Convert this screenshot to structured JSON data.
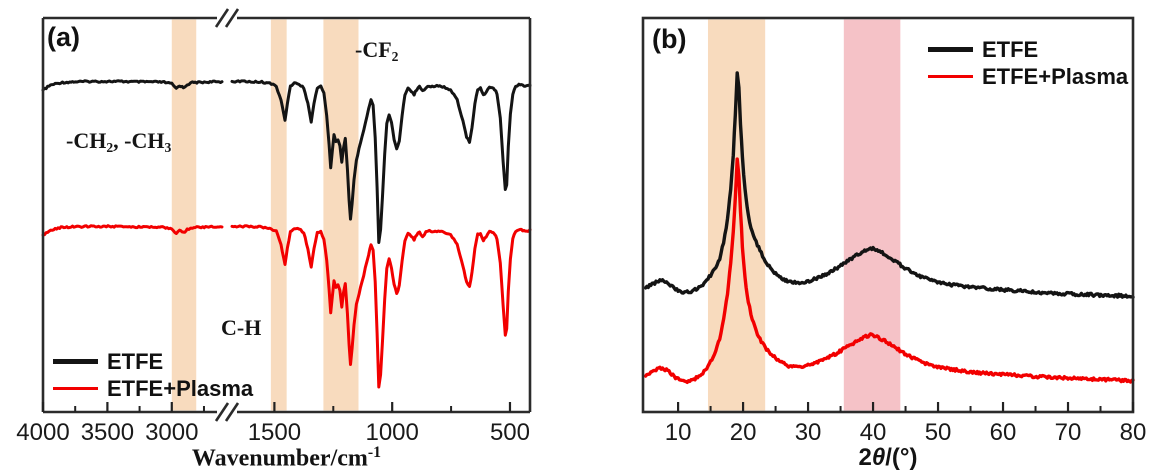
{
  "figure": {
    "background": "#ffffff"
  },
  "chart_data": [
    {
      "type": "line",
      "panel_label": "(a)",
      "description": "FTIR transmittance spectra (arbitrary units, curves vertically offset), broken wavenumber axis",
      "xlabel_text": "Wavenumber/cm-1",
      "xlabel_rich": [
        {
          "t": "Wavenumber/cm"
        },
        {
          "t": "-1",
          "sup": true
        }
      ],
      "x_axis": {
        "direction": "decreasing",
        "broken": true,
        "left_segment_range": [
          4000,
          2610
        ],
        "right_segment_range": [
          1680,
          415
        ],
        "major_ticks": [
          4000,
          3500,
          3000,
          1500,
          1000,
          500
        ],
        "major_tick_labels": [
          "4000",
          "3500",
          "3000",
          "1500",
          "1000",
          "500"
        ],
        "minor_ticks": [
          3750,
          3250,
          2750,
          1250,
          750
        ]
      },
      "y_axis": {
        "label": "",
        "ticks": "none",
        "units": "a.u."
      },
      "highlight_bands": [
        {
          "from": 3000,
          "to": 2810,
          "color": "#F8DBBE"
        },
        {
          "from": 1515,
          "to": 1448,
          "color": "#F8DBBE"
        },
        {
          "from": 1292,
          "to": 1143,
          "color": "#F8DBBE"
        }
      ],
      "annotations": [
        {
          "name": "ch-groups",
          "text": "-CH2, -CH3",
          "rich": [
            {
              "t": "-CH"
            },
            {
              "t": "2",
              "sub": true
            },
            {
              "t": ", -CH"
            },
            {
              "t": "3",
              "sub": true
            }
          ]
        },
        {
          "name": "cf2-group",
          "text": "-CF2",
          "rich": [
            {
              "t": "-CF"
            },
            {
              "t": "2",
              "sub": true
            }
          ]
        },
        {
          "name": "c-h",
          "text": "C-H",
          "rich": [
            {
              "t": "C-H"
            }
          ]
        }
      ],
      "legend": {
        "position": "bottom-left",
        "items": [
          {
            "label": "ETFE",
            "color": "#141414"
          },
          {
            "label": "ETFE+Plasma",
            "color": "#F20000"
          }
        ]
      },
      "series": [
        {
          "name": "ETFE",
          "color": "#141414",
          "baseline": 0.838,
          "width": 3
        },
        {
          "name": "ETFE+Plasma",
          "color": "#F20000",
          "baseline": 0.47,
          "width": 3
        }
      ],
      "profile_points": [
        [
          4000,
          -0.021
        ],
        [
          3940,
          -0.008
        ],
        [
          3860,
          -0.002
        ],
        [
          3760,
          0
        ],
        [
          3640,
          0.001
        ],
        [
          3520,
          0.001
        ],
        [
          3400,
          0.001
        ],
        [
          3280,
          0
        ],
        [
          3160,
          0
        ],
        [
          3060,
          -0.001
        ],
        [
          3000,
          -0.005
        ],
        [
          2965,
          -0.017
        ],
        [
          2940,
          -0.009
        ],
        [
          2910,
          -0.015
        ],
        [
          2880,
          -0.007
        ],
        [
          2840,
          -0.002
        ],
        [
          2760,
          -0.001
        ],
        [
          2680,
          0
        ],
        [
          2610,
          0
        ],
        [
          1680,
          0.001
        ],
        [
          1620,
          0.001
        ],
        [
          1560,
          0
        ],
        [
          1520,
          -0.003
        ],
        [
          1492,
          -0.012
        ],
        [
          1472,
          -0.045
        ],
        [
          1455,
          -0.097
        ],
        [
          1445,
          -0.055
        ],
        [
          1432,
          -0.012
        ],
        [
          1415,
          -0.004
        ],
        [
          1395,
          -0.006
        ],
        [
          1375,
          -0.015
        ],
        [
          1358,
          -0.055
        ],
        [
          1344,
          -0.102
        ],
        [
          1332,
          -0.055
        ],
        [
          1318,
          -0.016
        ],
        [
          1303,
          -0.012
        ],
        [
          1290,
          -0.03
        ],
        [
          1278,
          -0.085
        ],
        [
          1268,
          -0.16
        ],
        [
          1261,
          -0.218
        ],
        [
          1254,
          -0.175
        ],
        [
          1247,
          -0.135
        ],
        [
          1239,
          -0.152
        ],
        [
          1230,
          -0.147
        ],
        [
          1222,
          -0.16
        ],
        [
          1214,
          -0.205
        ],
        [
          1207,
          -0.17
        ],
        [
          1199,
          -0.145
        ],
        [
          1190,
          -0.22
        ],
        [
          1183,
          -0.3
        ],
        [
          1177,
          -0.35
        ],
        [
          1170,
          -0.31
        ],
        [
          1162,
          -0.25
        ],
        [
          1152,
          -0.198
        ],
        [
          1141,
          -0.17
        ],
        [
          1128,
          -0.14
        ],
        [
          1114,
          -0.105
        ],
        [
          1100,
          -0.07
        ],
        [
          1090,
          -0.045
        ],
        [
          1081,
          -0.06
        ],
        [
          1072,
          -0.14
        ],
        [
          1064,
          -0.27
        ],
        [
          1057,
          -0.407
        ],
        [
          1049,
          -0.375
        ],
        [
          1041,
          -0.29
        ],
        [
          1032,
          -0.185
        ],
        [
          1023,
          -0.105
        ],
        [
          1013,
          -0.083
        ],
        [
          1003,
          -0.105
        ],
        [
          992,
          -0.145
        ],
        [
          981,
          -0.17
        ],
        [
          970,
          -0.15
        ],
        [
          958,
          -0.085
        ],
        [
          946,
          -0.035
        ],
        [
          933,
          -0.015
        ],
        [
          919,
          -0.025
        ],
        [
          907,
          -0.032
        ],
        [
          896,
          -0.02
        ],
        [
          884,
          -0.013
        ],
        [
          871,
          -0.024
        ],
        [
          857,
          -0.014
        ],
        [
          842,
          -0.011
        ],
        [
          824,
          -0.013
        ],
        [
          804,
          -0.01
        ],
        [
          780,
          -0.013
        ],
        [
          752,
          -0.02
        ],
        [
          724,
          -0.045
        ],
        [
          700,
          -0.1
        ],
        [
          684,
          -0.14
        ],
        [
          672,
          -0.153
        ],
        [
          661,
          -0.115
        ],
        [
          649,
          -0.055
        ],
        [
          637,
          -0.02
        ],
        [
          625,
          -0.016
        ],
        [
          613,
          -0.034
        ],
        [
          601,
          -0.026
        ],
        [
          587,
          -0.013
        ],
        [
          571,
          -0.014
        ],
        [
          555,
          -0.03
        ],
        [
          541,
          -0.09
        ],
        [
          529,
          -0.2
        ],
        [
          520,
          -0.275
        ],
        [
          514,
          -0.26
        ],
        [
          507,
          -0.165
        ],
        [
          498,
          -0.08
        ],
        [
          488,
          -0.03
        ],
        [
          476,
          -0.012
        ],
        [
          462,
          -0.007
        ],
        [
          446,
          -0.009
        ],
        [
          430,
          -0.011
        ],
        [
          415,
          -0.009
        ]
      ]
    },
    {
      "type": "line",
      "panel_label": "(b)",
      "description": "XRD patterns, intensity in arbitrary units (curves vertically offset)",
      "xlabel_text": "2θ/(°)",
      "xlabel_rich": [
        {
          "t": "2"
        },
        {
          "t": "θ",
          "italic": true
        },
        {
          "t": "/(°)"
        }
      ],
      "x_axis": {
        "min": 4.6,
        "max": 80,
        "major_ticks": [
          10,
          20,
          30,
          40,
          50,
          60,
          70,
          80
        ],
        "major_tick_labels": [
          "10",
          "20",
          "30",
          "40",
          "50",
          "60",
          "70",
          "80"
        ],
        "minor_ticks": [
          15,
          25,
          35,
          45,
          55,
          65,
          75
        ]
      },
      "y_axis": {
        "label": "",
        "ticks": "none",
        "units": "a.u."
      },
      "highlight_bands": [
        {
          "from": 14.6,
          "to": 23.4,
          "color": "#F8DBBE"
        },
        {
          "from": 35.5,
          "to": 44.2,
          "color": "#F5C2C7"
        }
      ],
      "peaks": [
        {
          "two_theta": 19.1,
          "note": "sharp main peak, both curves"
        },
        {
          "two_theta": 39.5,
          "note": "broad hump, both curves"
        }
      ],
      "legend": {
        "position": "top-right",
        "items": [
          {
            "label": "ETFE",
            "color": "#141414"
          },
          {
            "label": "ETFE+Plasma",
            "color": "#F20000"
          }
        ]
      },
      "series": [
        {
          "name": "ETFE",
          "color": "#141414",
          "width": 3.4,
          "points": [
            [
              5,
              0.315
            ],
            [
              5.8,
              0.322
            ],
            [
              6.8,
              0.331
            ],
            [
              7.6,
              0.334
            ],
            [
              8.6,
              0.325
            ],
            [
              9.6,
              0.312
            ],
            [
              10.6,
              0.305
            ],
            [
              11.6,
              0.304
            ],
            [
              12.6,
              0.31
            ],
            [
              13.6,
              0.32
            ],
            [
              14.6,
              0.338
            ],
            [
              15.6,
              0.362
            ],
            [
              16.4,
              0.39
            ],
            [
              17,
              0.43
            ],
            [
              17.6,
              0.49
            ],
            [
              18.1,
              0.565
            ],
            [
              18.5,
              0.655
            ],
            [
              18.8,
              0.755
            ],
            [
              19.1,
              0.862
            ],
            [
              19.35,
              0.825
            ],
            [
              19.6,
              0.73
            ],
            [
              19.9,
              0.645
            ],
            [
              20.3,
              0.565
            ],
            [
              20.8,
              0.5
            ],
            [
              21.4,
              0.455
            ],
            [
              22,
              0.432
            ],
            [
              22.6,
              0.41
            ],
            [
              23.4,
              0.383
            ],
            [
              24.4,
              0.36
            ],
            [
              25.6,
              0.342
            ],
            [
              27,
              0.331
            ],
            [
              28.5,
              0.328
            ],
            [
              30,
              0.332
            ],
            [
              31.5,
              0.34
            ],
            [
              33,
              0.352
            ],
            [
              34.5,
              0.366
            ],
            [
              36,
              0.382
            ],
            [
              37.5,
              0.398
            ],
            [
              38.7,
              0.41
            ],
            [
              39.6,
              0.417
            ],
            [
              40.6,
              0.412
            ],
            [
              41.8,
              0.4
            ],
            [
              43,
              0.387
            ],
            [
              44.5,
              0.37
            ],
            [
              46,
              0.355
            ],
            [
              47.5,
              0.343
            ],
            [
              49,
              0.334
            ],
            [
              51,
              0.326
            ],
            [
              53,
              0.321
            ],
            [
              55.5,
              0.316
            ],
            [
              58,
              0.313
            ],
            [
              61,
              0.309
            ],
            [
              64,
              0.306
            ],
            [
              67,
              0.302
            ],
            [
              70,
              0.3
            ],
            [
              73,
              0.298
            ],
            [
              76,
              0.296
            ],
            [
              80,
              0.294
            ]
          ]
        },
        {
          "name": "ETFE+Plasma",
          "color": "#F20000",
          "width": 3.4,
          "points": [
            [
              5,
              0.091
            ],
            [
              5.8,
              0.098
            ],
            [
              6.8,
              0.108
            ],
            [
              7.6,
              0.112
            ],
            [
              8.6,
              0.102
            ],
            [
              9.6,
              0.087
            ],
            [
              10.6,
              0.079
            ],
            [
              11.6,
              0.078
            ],
            [
              12.6,
              0.084
            ],
            [
              13.6,
              0.096
            ],
            [
              14.6,
              0.115
            ],
            [
              15.6,
              0.145
            ],
            [
              16.4,
              0.185
            ],
            [
              17,
              0.235
            ],
            [
              17.6,
              0.3
            ],
            [
              18.1,
              0.375
            ],
            [
              18.5,
              0.455
            ],
            [
              18.8,
              0.545
            ],
            [
              19.1,
              0.645
            ],
            [
              19.35,
              0.6
            ],
            [
              19.6,
              0.51
            ],
            [
              19.9,
              0.42
            ],
            [
              20.3,
              0.34
            ],
            [
              20.8,
              0.28
            ],
            [
              21.4,
              0.235
            ],
            [
              22,
              0.205
            ],
            [
              22.6,
              0.185
            ],
            [
              23.4,
              0.163
            ],
            [
              24.4,
              0.145
            ],
            [
              25.6,
              0.128
            ],
            [
              27,
              0.117
            ],
            [
              28.5,
              0.114
            ],
            [
              30,
              0.118
            ],
            [
              31.5,
              0.126
            ],
            [
              33,
              0.137
            ],
            [
              34.5,
              0.15
            ],
            [
              36,
              0.165
            ],
            [
              37.5,
              0.18
            ],
            [
              38.7,
              0.19
            ],
            [
              39.6,
              0.196
            ],
            [
              40.6,
              0.191
            ],
            [
              41.8,
              0.18
            ],
            [
              43,
              0.168
            ],
            [
              44.5,
              0.152
            ],
            [
              46,
              0.138
            ],
            [
              47.5,
              0.127
            ],
            [
              49,
              0.118
            ],
            [
              51,
              0.111
            ],
            [
              53,
              0.106
            ],
            [
              55.5,
              0.101
            ],
            [
              58,
              0.098
            ],
            [
              61,
              0.094
            ],
            [
              64,
              0.091
            ],
            [
              67,
              0.088
            ],
            [
              70,
              0.086
            ],
            [
              73,
              0.084
            ],
            [
              76,
              0.082
            ],
            [
              80,
              0.079
            ]
          ]
        }
      ]
    }
  ]
}
